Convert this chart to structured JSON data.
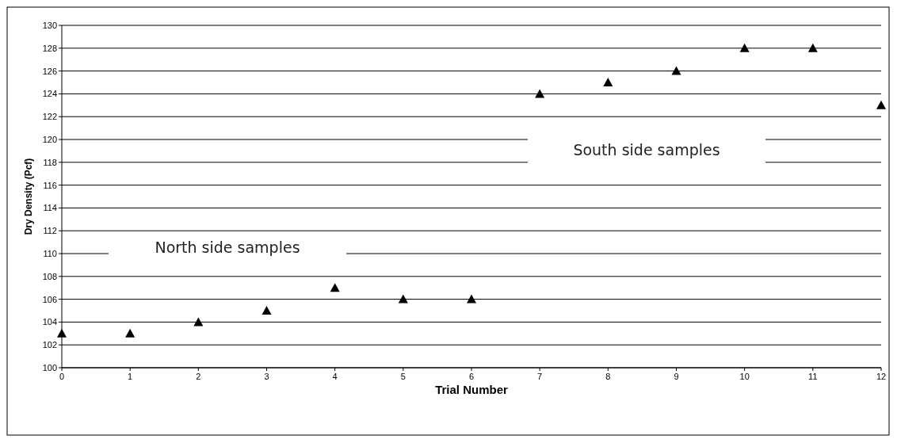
{
  "chart_data": {
    "type": "scatter",
    "xlabel": "Trial Number",
    "ylabel": "Dry Density (Pcf)",
    "x": [
      0,
      1,
      2,
      3,
      4,
      5,
      6,
      7,
      8,
      9,
      10,
      11,
      12
    ],
    "values": [
      103,
      103,
      104,
      105,
      107,
      106,
      106,
      124,
      125,
      126,
      128,
      128,
      123
    ],
    "color": "#000000",
    "marker": "triangle",
    "xlim": [
      0,
      12
    ],
    "xticks": [
      0,
      1,
      2,
      3,
      4,
      5,
      6,
      7,
      8,
      9,
      10,
      11,
      12
    ],
    "ylim": [
      100,
      130
    ],
    "yticks": [
      100,
      102,
      104,
      106,
      108,
      110,
      112,
      114,
      116,
      118,
      120,
      122,
      124,
      126,
      128,
      130
    ],
    "grid": "y",
    "annotations": [
      "North side samples",
      "South side samples"
    ]
  }
}
